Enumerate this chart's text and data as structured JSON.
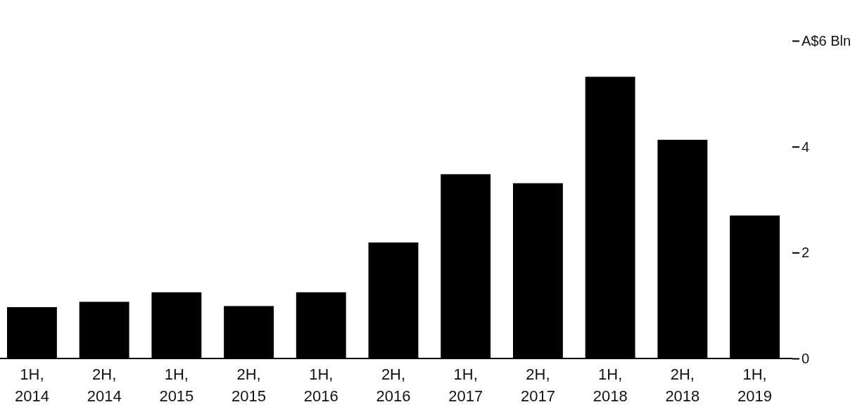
{
  "chart_data": {
    "type": "bar",
    "categories": [
      "1H, 2014",
      "2H, 2014",
      "1H, 2015",
      "2H, 2015",
      "1H, 2016",
      "2H, 2016",
      "1H, 2017",
      "2H, 2017",
      "1H, 2018",
      "2H, 2018",
      "1H, 2019"
    ],
    "values": [
      0.97,
      1.07,
      1.25,
      0.99,
      1.25,
      2.19,
      3.48,
      3.31,
      5.32,
      4.13,
      2.7
    ],
    "color": "#000000",
    "ylim": [
      0,
      6
    ],
    "yticks": [
      0,
      2,
      4,
      {
        "value": 6,
        "label": "A$6 Bln"
      }
    ]
  }
}
